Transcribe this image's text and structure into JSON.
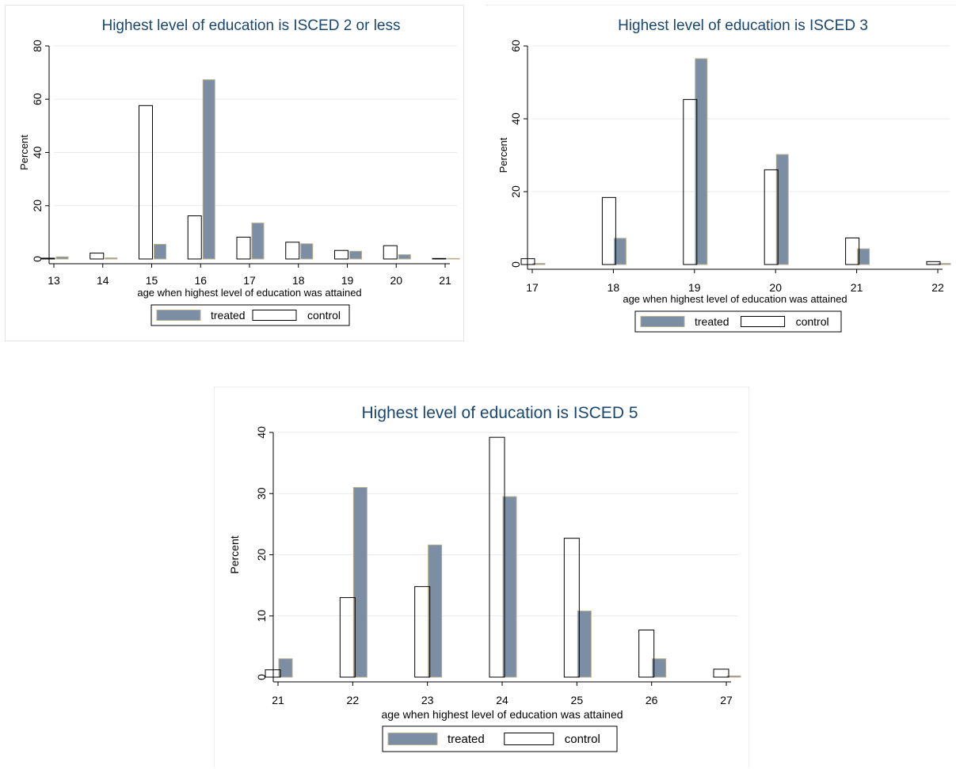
{
  "colors": {
    "treated_fill": "#7b8ea3",
    "treated_edge": "#b8ae8a",
    "control_fill": "#ffffff",
    "control_edge": "#000000",
    "title": "#1a476f",
    "grid": "#eaeaea"
  },
  "chart_data": [
    {
      "type": "bar",
      "title": "Highest level of education is ISCED 2 or less",
      "xlabel": "age when highest level of education was attained",
      "ylabel": "Percent",
      "x": [
        13,
        14,
        15,
        16,
        17,
        18,
        19,
        20,
        21
      ],
      "xlim": [
        13,
        21
      ],
      "ylim": [
        0,
        80
      ],
      "yticks": [
        0,
        20,
        40,
        60,
        80
      ],
      "grid": true,
      "legend_position": "bottom",
      "series": [
        {
          "name": "treated",
          "values": [
            0.8,
            0.4,
            5.5,
            67.3,
            13.5,
            5.7,
            2.9,
            1.6,
            0.2
          ]
        },
        {
          "name": "control",
          "values": [
            0.3,
            2.2,
            57.6,
            16.2,
            8.2,
            6.3,
            3.2,
            5.0,
            0.2
          ]
        }
      ]
    },
    {
      "type": "bar",
      "title": "Highest level of education is ISCED 3",
      "xlabel": "age when highest level of education was attained",
      "ylabel": "Percent",
      "x": [
        17,
        18,
        19,
        20,
        21,
        22
      ],
      "xlim": [
        17,
        22
      ],
      "ylim": [
        0,
        60
      ],
      "yticks": [
        0,
        20,
        40,
        60
      ],
      "grid": true,
      "legend_position": "bottom",
      "series": [
        {
          "name": "treated",
          "values": [
            0.3,
            7.2,
            56.5,
            30.2,
            4.3,
            0.3
          ]
        },
        {
          "name": "control",
          "values": [
            1.6,
            18.4,
            45.3,
            26.0,
            7.3,
            0.8
          ]
        }
      ]
    },
    {
      "type": "bar",
      "title": "Highest level of education is ISCED 5",
      "xlabel": "age when highest level of education was attained",
      "ylabel": "Percent",
      "x": [
        21,
        22,
        23,
        24,
        25,
        26,
        27
      ],
      "xlim": [
        21,
        27
      ],
      "ylim": [
        0,
        40
      ],
      "yticks": [
        0,
        10,
        20,
        30,
        40
      ],
      "grid": true,
      "legend_position": "bottom",
      "series": [
        {
          "name": "treated",
          "values": [
            3.0,
            31.0,
            21.6,
            29.5,
            10.8,
            3.0,
            0.2
          ]
        },
        {
          "name": "control",
          "values": [
            1.2,
            13.0,
            14.8,
            39.2,
            22.7,
            7.7,
            1.3
          ]
        }
      ]
    }
  ]
}
